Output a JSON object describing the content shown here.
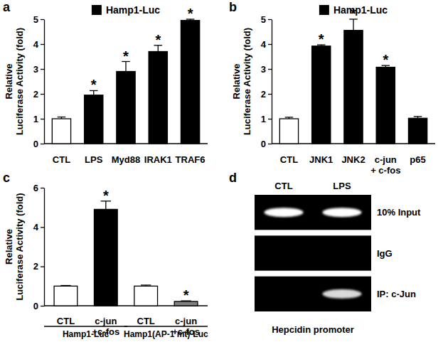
{
  "chart_data": [
    {
      "type": "bar",
      "label": "a",
      "ylabel": "Relative\nLuciferase Activity (fold)",
      "categories": [
        "CTL",
        "LPS",
        "Myd88",
        "IRAK1",
        "TRAF6"
      ],
      "series": [
        {
          "name": "Hamp1-Luc",
          "color": "#000000",
          "values": [
            1,
            1.95,
            2.9,
            3.7,
            4.95
          ],
          "errors": [
            0.07,
            0.18,
            0.4,
            0.25,
            0.05
          ]
        }
      ],
      "colors": [
        "#ffffff",
        "#000000",
        "#000000",
        "#000000",
        "#000000"
      ],
      "significance": [
        null,
        "*",
        "*",
        "*",
        "*"
      ],
      "ylim": [
        0,
        5
      ],
      "yticks": [
        0,
        1,
        2,
        3,
        4,
        5
      ],
      "legend": "top",
      "grid": false
    },
    {
      "type": "bar",
      "label": "b",
      "ylabel": "Relative\nLuciferase Activity (fold)",
      "categories": [
        "CTL",
        "JNK1",
        "JNK2",
        "c-jun\n+ c-fos",
        "p65"
      ],
      "series": [
        {
          "name": "Hamp1-Luc",
          "color": "#000000",
          "values": [
            1,
            3.92,
            4.55,
            3.07,
            1.02
          ],
          "errors": [
            0.06,
            0.05,
            0.45,
            0.07,
            0.07
          ]
        }
      ],
      "colors": [
        "#ffffff",
        "#000000",
        "#000000",
        "#000000",
        "#000000"
      ],
      "significance": [
        null,
        "*",
        "*",
        "*",
        null
      ],
      "ylim": [
        0,
        5
      ],
      "yticks": [
        0,
        1,
        2,
        3,
        4,
        5
      ],
      "legend": "top",
      "grid": false
    },
    {
      "type": "bar",
      "label": "c",
      "ylabel": "Relative\nLuciferase Activity (fold)",
      "categories": [
        "CTL",
        "c-jun\n+c-fos",
        "CTL",
        "c-jun\n+c-fos"
      ],
      "series": [
        {
          "values": [
            1,
            4.9,
            1,
            0.22
          ],
          "errors": [
            0.03,
            0.42,
            0.05,
            0.03
          ]
        }
      ],
      "colors": [
        "#ffffff",
        "#000000",
        "#ffffff",
        "#808080"
      ],
      "significance": [
        null,
        "*",
        null,
        "*"
      ],
      "group_labels": [
        "Hamp1-Luc",
        "Hamp1(AP-1 mt)-Luc"
      ],
      "ylim": [
        0,
        6
      ],
      "yticks": [
        0,
        2,
        4,
        6
      ],
      "legend": false,
      "grid": false
    },
    {
      "type": "gel",
      "label": "d",
      "categories": [
        "CTL",
        "LPS"
      ],
      "series": [
        {
          "name": "10% Input",
          "values": [
            1,
            1
          ]
        },
        {
          "name": "IgG",
          "values": [
            0,
            0
          ]
        },
        {
          "name": "IP: c-Jun",
          "values": [
            0,
            0.85
          ]
        }
      ],
      "xlabel": "Hepcidin promoter"
    }
  ]
}
